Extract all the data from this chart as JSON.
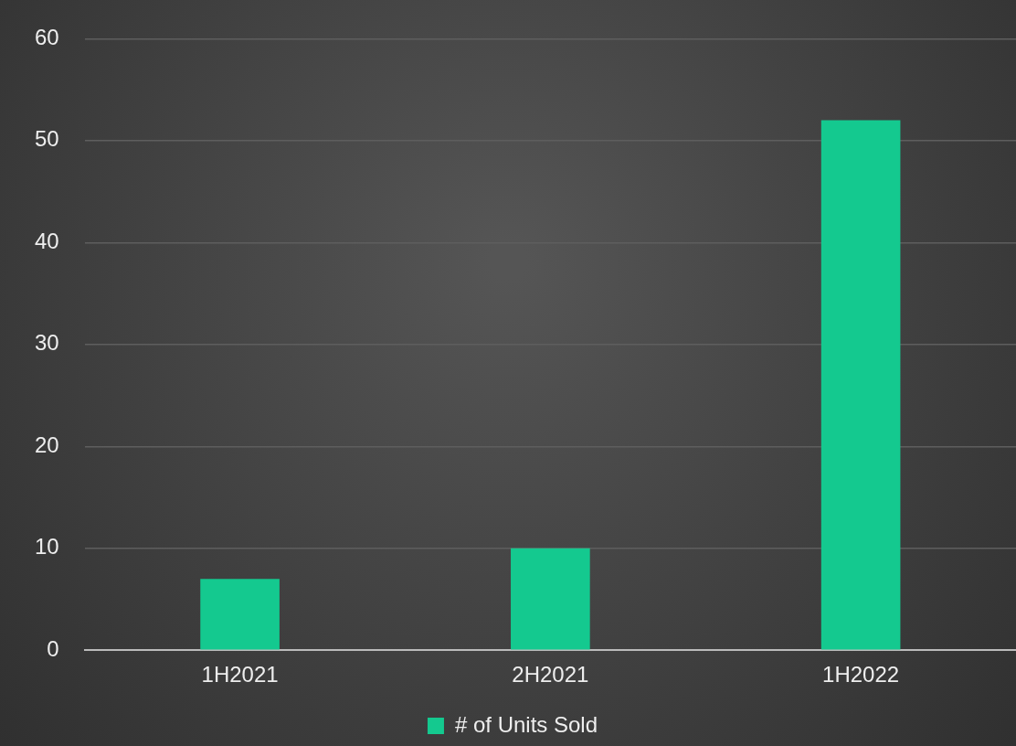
{
  "chart_data": {
    "type": "bar",
    "categories": [
      "1H2021",
      "2H2021",
      "1H2022"
    ],
    "series": [
      {
        "name": "# of Units Sold",
        "color": "#14c98f",
        "values": [
          7,
          10,
          52
        ]
      }
    ],
    "ylim": [
      0,
      60
    ],
    "yticks": [
      0,
      10,
      20,
      30,
      40,
      50,
      60
    ],
    "grid": "y",
    "legend": "bottom"
  }
}
